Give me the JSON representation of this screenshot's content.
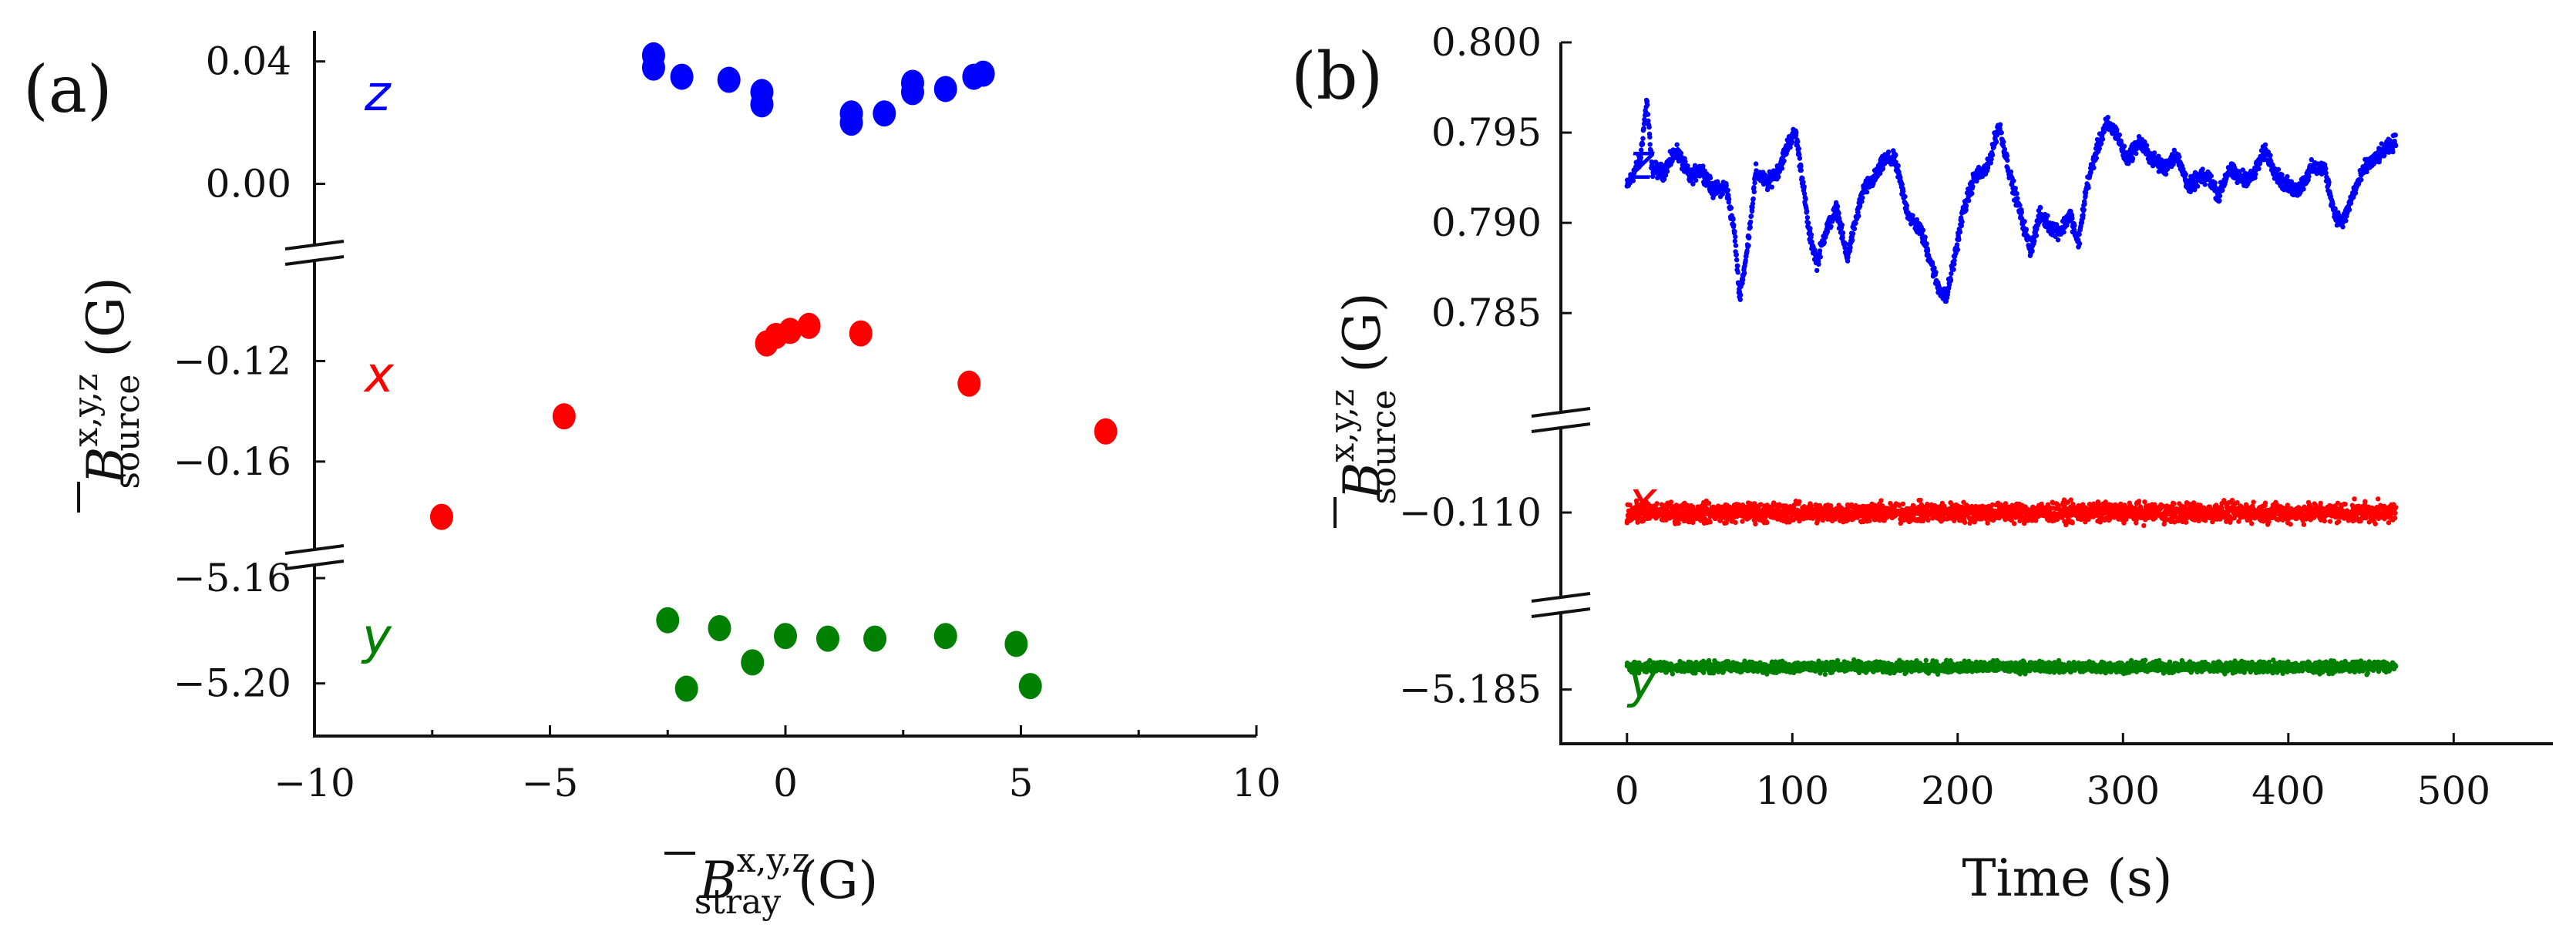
{
  "chart_data": [
    {
      "panel_label": "(a)",
      "type": "scatter",
      "xlabel": {
        "symbol": "B",
        "superscript": "x,y,z",
        "subscript": "stray",
        "unit": "(G)"
      },
      "ylabel": {
        "symbol": "B",
        "superscript": "x,y,z",
        "subscript": "source",
        "unit": "(G)"
      },
      "xlim": [
        -10,
        10
      ],
      "x_ticks": [
        -10,
        -5,
        0,
        5,
        10
      ],
      "x_tick_labels": [
        "−10",
        "−5",
        "0",
        "5",
        "10"
      ],
      "segments": [
        {
          "series": "z",
          "ylim": [
            -0.02,
            0.05
          ],
          "y_ticks": [
            0.0,
            0.04
          ],
          "y_tick_labels": [
            "0.00",
            "0.04"
          ]
        },
        {
          "series": "x",
          "ylim": [
            -0.195,
            -0.08
          ],
          "y_ticks": [
            -0.12,
            -0.16
          ],
          "y_tick_labels": [
            "−0.12",
            "−0.16"
          ]
        },
        {
          "series": "y",
          "ylim": [
            -5.22,
            -5.155
          ],
          "y_ticks": [
            -5.16,
            -5.2
          ],
          "y_tick_labels": [
            "−5.16",
            "−5.20"
          ]
        }
      ],
      "series": [
        {
          "name": "z",
          "color": "#0000ff",
          "points": [
            [
              -2.8,
              0.042
            ],
            [
              -2.8,
              0.038
            ],
            [
              -2.2,
              0.035
            ],
            [
              -1.2,
              0.034
            ],
            [
              -0.5,
              0.03
            ],
            [
              -0.5,
              0.026
            ],
            [
              1.4,
              0.023
            ],
            [
              1.4,
              0.02
            ],
            [
              2.1,
              0.023
            ],
            [
              2.7,
              0.033
            ],
            [
              2.7,
              0.03
            ],
            [
              3.4,
              0.031
            ],
            [
              4.0,
              0.035
            ],
            [
              4.2,
              0.036
            ]
          ]
        },
        {
          "name": "x",
          "color": "#ff0000",
          "points": [
            [
              -7.3,
              -0.182
            ],
            [
              -4.7,
              -0.142
            ],
            [
              -0.4,
              -0.113
            ],
            [
              -0.2,
              -0.11
            ],
            [
              0.1,
              -0.108
            ],
            [
              0.5,
              -0.106
            ],
            [
              1.6,
              -0.109
            ],
            [
              3.9,
              -0.129
            ],
            [
              6.8,
              -0.148
            ]
          ]
        },
        {
          "name": "y",
          "color": "#008000",
          "points": [
            [
              -2.5,
              -5.176
            ],
            [
              -2.1,
              -5.202
            ],
            [
              -1.4,
              -5.179
            ],
            [
              -0.7,
              -5.192
            ],
            [
              0.0,
              -5.182
            ],
            [
              0.9,
              -5.183
            ],
            [
              1.9,
              -5.183
            ],
            [
              3.4,
              -5.182
            ],
            [
              4.9,
              -5.185
            ],
            [
              5.2,
              -5.201
            ]
          ]
        }
      ]
    },
    {
      "panel_label": "(b)",
      "type": "scatter",
      "xlabel": {
        "text": "Time (s)"
      },
      "ylabel": {
        "symbol": "B",
        "superscript": "x,y,z",
        "subscript": "source",
        "unit": "(G)"
      },
      "xlim": [
        -40,
        560
      ],
      "x_ticks": [
        0,
        100,
        200,
        300,
        400,
        500
      ],
      "x_tick_labels": [
        "0",
        "100",
        "200",
        "300",
        "400",
        "500"
      ],
      "segments": [
        {
          "series": "z",
          "ylim": [
            0.7795,
            0.8
          ],
          "y_ticks": [
            0.8,
            0.795,
            0.79,
            0.785
          ],
          "y_tick_labels": [
            "0.800",
            "0.795",
            "0.790",
            "0.785"
          ]
        },
        {
          "series": "x",
          "ylim": [
            -0.1112,
            -0.1088
          ],
          "y_ticks": [
            -0.11
          ],
          "y_tick_labels": [
            "−0.110"
          ]
        },
        {
          "series": "y",
          "ylim": [
            -5.1862,
            -5.1833
          ],
          "y_ticks": [
            -5.185
          ],
          "y_tick_labels": [
            "−5.185"
          ]
        }
      ],
      "series": [
        {
          "name": "z",
          "color": "#0000ff",
          "t_start": 0,
          "t_end": 465,
          "trace": [
            [
              0,
              0.792
            ],
            [
              8,
              0.7935
            ],
            [
              12,
              0.7968
            ],
            [
              15,
              0.793
            ],
            [
              22,
              0.7928
            ],
            [
              30,
              0.794
            ],
            [
              38,
              0.7925
            ],
            [
              45,
              0.793
            ],
            [
              52,
              0.7918
            ],
            [
              60,
              0.792
            ],
            [
              65,
              0.7895
            ],
            [
              68,
              0.786
            ],
            [
              72,
              0.788
            ],
            [
              78,
              0.7928
            ],
            [
              85,
              0.7922
            ],
            [
              92,
              0.793
            ],
            [
              98,
              0.7945
            ],
            [
              102,
              0.795
            ],
            [
              106,
              0.7925
            ],
            [
              110,
              0.7895
            ],
            [
              115,
              0.7878
            ],
            [
              120,
              0.7895
            ],
            [
              127,
              0.7908
            ],
            [
              133,
              0.788
            ],
            [
              138,
              0.79
            ],
            [
              143,
              0.7918
            ],
            [
              150,
              0.7925
            ],
            [
              156,
              0.7935
            ],
            [
              162,
              0.7935
            ],
            [
              170,
              0.7905
            ],
            [
              178,
              0.7895
            ],
            [
              184,
              0.7878
            ],
            [
              188,
              0.7865
            ],
            [
              193,
              0.7858
            ],
            [
              198,
              0.788
            ],
            [
              203,
              0.7905
            ],
            [
              210,
              0.7925
            ],
            [
              218,
              0.793
            ],
            [
              225,
              0.7955
            ],
            [
              232,
              0.7925
            ],
            [
              238,
              0.7905
            ],
            [
              244,
              0.7885
            ],
            [
              250,
              0.7905
            ],
            [
              256,
              0.7898
            ],
            [
              262,
              0.7895
            ],
            [
              268,
              0.7905
            ],
            [
              273,
              0.7888
            ],
            [
              278,
              0.792
            ],
            [
              284,
              0.794
            ],
            [
              290,
              0.7955
            ],
            [
              296,
              0.795
            ],
            [
              302,
              0.7935
            ],
            [
              310,
              0.7945
            ],
            [
              318,
              0.7935
            ],
            [
              325,
              0.793
            ],
            [
              332,
              0.7938
            ],
            [
              340,
              0.792
            ],
            [
              346,
              0.7925
            ],
            [
              352,
              0.7925
            ],
            [
              358,
              0.7915
            ],
            [
              364,
              0.793
            ],
            [
              370,
              0.7925
            ],
            [
              378,
              0.7925
            ],
            [
              386,
              0.794
            ],
            [
              394,
              0.7925
            ],
            [
              400,
              0.792
            ],
            [
              406,
              0.7918
            ],
            [
              414,
              0.793
            ],
            [
              422,
              0.793
            ],
            [
              428,
              0.7905
            ],
            [
              433,
              0.79
            ],
            [
              440,
              0.7918
            ],
            [
              446,
              0.793
            ],
            [
              452,
              0.7935
            ],
            [
              458,
              0.794
            ],
            [
              465,
              0.7945
            ]
          ],
          "noise_amplitude": 0.0006
        },
        {
          "name": "x",
          "color": "#ff0000",
          "t_start": 0,
          "t_end": 465,
          "mean": -0.11,
          "noise_amplitude": 0.0002
        },
        {
          "name": "y",
          "color": "#008000",
          "t_start": 0,
          "t_end": 465,
          "mean": -5.1845,
          "noise_amplitude": 0.00018
        }
      ]
    }
  ]
}
